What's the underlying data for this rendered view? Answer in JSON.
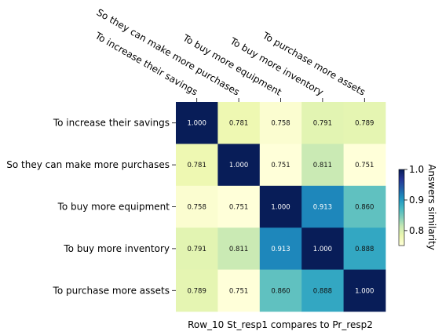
{
  "chart_data": {
    "type": "heatmap",
    "rows": [
      "To increase their savings",
      "So they can make more purchases",
      "To buy more equipment",
      "To buy more inventory",
      "To purchase more assets"
    ],
    "columns": [
      "To increase their savings",
      "So they can make more purchases",
      "To buy more equipment",
      "To buy more inventory",
      "To purchase more assets"
    ],
    "values": [
      [
        1.0,
        0.781,
        0.758,
        0.791,
        0.789
      ],
      [
        0.781,
        1.0,
        0.751,
        0.811,
        0.751
      ],
      [
        0.758,
        0.751,
        1.0,
        0.913,
        0.86
      ],
      [
        0.791,
        0.811,
        0.913,
        1.0,
        0.888
      ],
      [
        0.789,
        0.751,
        0.86,
        0.888,
        1.0
      ]
    ],
    "value_labels": [
      [
        "1.000",
        "0.781",
        "0.758",
        "0.791",
        "0.789"
      ],
      [
        "0.781",
        "1.000",
        "0.751",
        "0.811",
        "0.751"
      ],
      [
        "0.758",
        "0.751",
        "1.000",
        "0.913",
        "0.860"
      ],
      [
        "0.791",
        "0.811",
        "0.913",
        "1.000",
        "0.888"
      ],
      [
        "0.789",
        "0.751",
        "0.860",
        "0.888",
        "1.000"
      ]
    ],
    "xlabel": "Row_10 St_resp1 compares to Pr_resp2",
    "colormap": "YlGnBu",
    "colorbar": {
      "label": "Answers similarity",
      "range": [
        0.751,
        1.0
      ],
      "ticks": [
        "0.8",
        "0.9",
        "1.0"
      ],
      "tick_values": [
        0.8,
        0.9,
        1.0
      ]
    },
    "x_ticks_position": "top"
  }
}
